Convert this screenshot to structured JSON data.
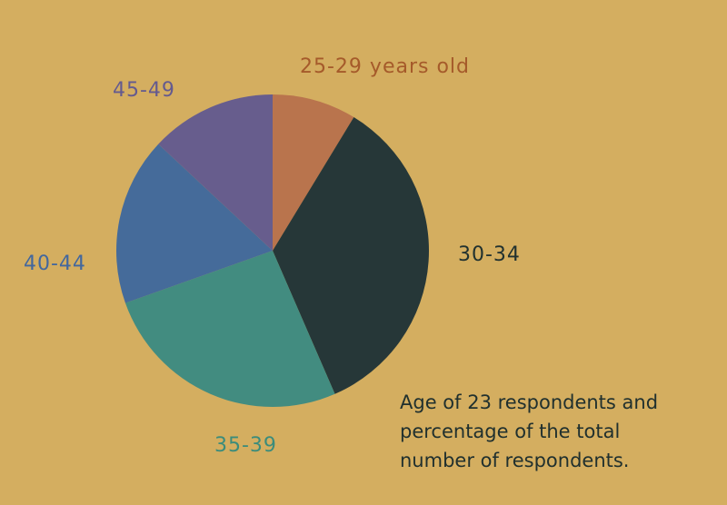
{
  "chart_data": {
    "type": "pie",
    "total_respondents": 23,
    "categories": [
      "25-29",
      "30-34",
      "35-39",
      "40-44",
      "45-49"
    ],
    "values": [
      2,
      8,
      6,
      4,
      3
    ],
    "colors": [
      "#B9744D",
      "#263738",
      "#428C80",
      "#456B9A",
      "#675D8D"
    ],
    "labels": [
      "25-29 years old",
      "30-34",
      "35-39",
      "40-44",
      "45-49"
    ],
    "caption_lines": [
      "Age of 23 respondents and",
      "percentage of the total",
      "number of respondents."
    ]
  }
}
